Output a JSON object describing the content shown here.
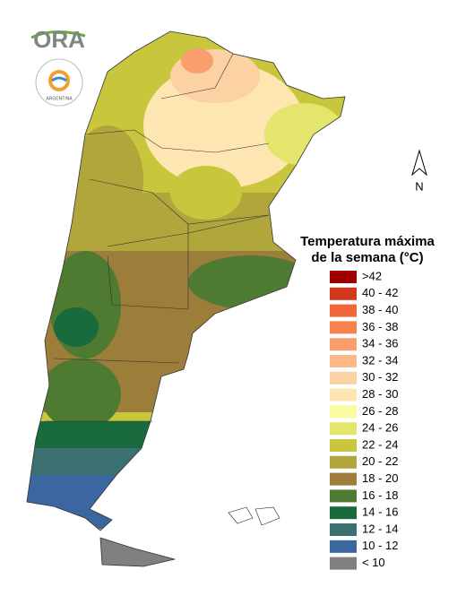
{
  "logo": {
    "title": "ORA",
    "subtitle": "ARGENTINA"
  },
  "north_label": "N",
  "legend": {
    "title_lines": [
      "Temperatura máxima",
      "de la semana (°C)"
    ],
    "items": [
      {
        "label": ">42",
        "color": "#a00000"
      },
      {
        "label": "40 - 42",
        "color": "#d2381c"
      },
      {
        "label": "38 - 40",
        "color": "#f0683a"
      },
      {
        "label": "36 - 38",
        "color": "#f6834e"
      },
      {
        "label": "34 - 36",
        "color": "#f99e6c"
      },
      {
        "label": "32 - 34",
        "color": "#fbb98a"
      },
      {
        "label": "30 - 32",
        "color": "#fcd1a4"
      },
      {
        "label": "28 - 30",
        "color": "#fde6b2"
      },
      {
        "label": "26 - 28",
        "color": "#fafa9e"
      },
      {
        "label": "24 - 26",
        "color": "#e3e56c"
      },
      {
        "label": "22 - 24",
        "color": "#c8c63c"
      },
      {
        "label": "20 - 22",
        "color": "#b0a63c"
      },
      {
        "label": "18 - 20",
        "color": "#9c7e3a"
      },
      {
        "label": "16 - 18",
        "color": "#4f7a32"
      },
      {
        "label": "14 - 16",
        "color": "#196a3c"
      },
      {
        "label": "12 - 14",
        "color": "#3a7070"
      },
      {
        "label": "10 - 12",
        "color": "#3a67a0"
      },
      {
        "label": "< 10",
        "color": "#808080"
      }
    ]
  }
}
